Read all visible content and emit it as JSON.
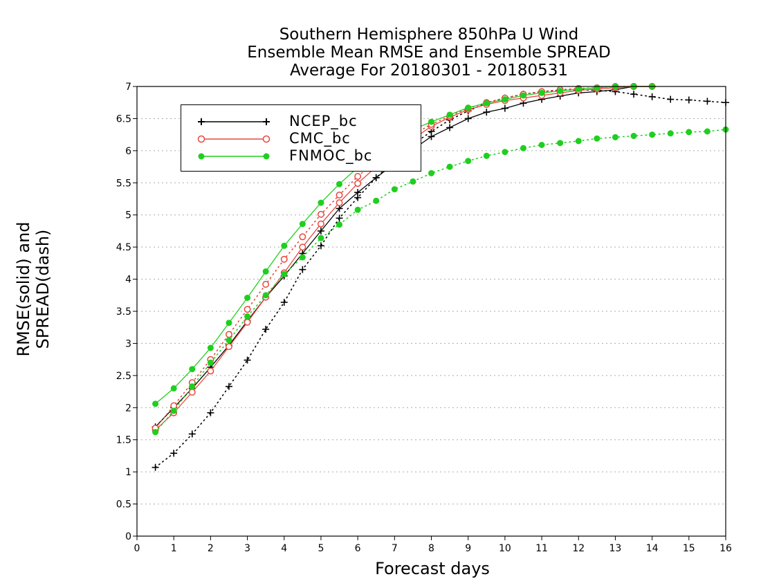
{
  "chart_data": {
    "type": "line",
    "title": [
      "Southern Hemisphere 850hPa U Wind",
      "Ensemble Mean RMSE and Ensemble SPREAD",
      "Average For 20180301 - 20180531"
    ],
    "xlabel": "Forecast days",
    "ylabel": "RMSE(solid) and SPREAD(dash)",
    "xlim": [
      0,
      16
    ],
    "ylim": [
      0,
      7
    ],
    "xticks": [
      "0",
      "1",
      "2",
      "3",
      "4",
      "5",
      "6",
      "7",
      "8",
      "9",
      "10",
      "11",
      "12",
      "13",
      "14",
      "15",
      "16"
    ],
    "yticks": [
      "0",
      "0.5",
      "1",
      "1.5",
      "2",
      "2.5",
      "3",
      "3.5",
      "4",
      "4.5",
      "5",
      "5.5",
      "6",
      "6.5",
      "7"
    ],
    "grid": true,
    "legend_position": "top-left",
    "series": [
      {
        "name": "NCEP_bc",
        "metric": "RMSE",
        "line": "solid",
        "marker": "plus",
        "color": "#000000",
        "x": [
          0.5,
          1,
          1.5,
          2,
          2.5,
          3,
          3.5,
          4,
          4.5,
          5,
          5.5,
          6,
          6.5,
          7,
          7.5,
          8,
          8.5,
          9,
          9.5,
          10,
          10.5,
          11,
          11.5,
          12,
          12.5,
          13,
          13.5,
          14
        ],
        "y": [
          1.7,
          2.0,
          2.3,
          2.63,
          2.97,
          3.35,
          3.72,
          4.05,
          4.4,
          4.75,
          5.1,
          5.35,
          5.58,
          5.8,
          6.02,
          6.22,
          6.36,
          6.5,
          6.6,
          6.66,
          6.74,
          6.8,
          6.85,
          6.9,
          6.92,
          6.95,
          7.0,
          7.0
        ]
      },
      {
        "name": "NCEP_bc",
        "metric": "SPREAD",
        "line": "dotted",
        "marker": "plus",
        "color": "#000000",
        "x": [
          0.5,
          1,
          1.5,
          2,
          2.5,
          3,
          3.5,
          4,
          4.5,
          5,
          5.5,
          6,
          6.5,
          7,
          7.5,
          8,
          8.5,
          9,
          9.5,
          10,
          10.5,
          11,
          11.5,
          12,
          12.5,
          13,
          13.5,
          14,
          14.5,
          15,
          15.5,
          16
        ],
        "y": [
          1.07,
          1.29,
          1.59,
          1.92,
          2.33,
          2.74,
          3.22,
          3.64,
          4.15,
          4.52,
          4.95,
          5.27,
          5.58,
          5.85,
          6.1,
          6.3,
          6.48,
          6.62,
          6.74,
          6.82,
          6.88,
          6.92,
          6.94,
          6.95,
          6.94,
          6.92,
          6.88,
          6.84,
          6.8,
          6.79,
          6.77,
          6.75
        ]
      },
      {
        "name": "CMC_bc",
        "metric": "RMSE",
        "line": "solid",
        "marker": "open-circle",
        "color": "#e8473c",
        "x": [
          0.5,
          1,
          1.5,
          2,
          2.5,
          3,
          3.5,
          4,
          4.5,
          5,
          5.5,
          6,
          6.5,
          7,
          7.5,
          8,
          8.5,
          9,
          9.5,
          10,
          10.5,
          11,
          11.5,
          12,
          12.5,
          13,
          13.5,
          14
        ],
        "y": [
          1.65,
          1.92,
          2.24,
          2.57,
          2.95,
          3.33,
          3.72,
          4.1,
          4.5,
          4.86,
          5.19,
          5.49,
          5.75,
          5.98,
          6.18,
          6.38,
          6.52,
          6.64,
          6.72,
          6.78,
          6.82,
          6.86,
          6.9,
          6.94,
          6.96,
          6.98,
          7.0,
          7.0
        ]
      },
      {
        "name": "CMC_bc",
        "metric": "SPREAD",
        "line": "dotted",
        "marker": "open-circle",
        "color": "#e8473c",
        "x": [
          0.5,
          1,
          1.5,
          2,
          2.5,
          3,
          3.5,
          4,
          4.5,
          5,
          5.5,
          6,
          6.5,
          7,
          7.5,
          8,
          8.5,
          9,
          9.5,
          10,
          10.5,
          11,
          11.5,
          12,
          12.5,
          13,
          13.5,
          14
        ],
        "y": [
          1.68,
          2.03,
          2.39,
          2.75,
          3.14,
          3.53,
          3.92,
          4.31,
          4.66,
          5.01,
          5.31,
          5.6,
          5.84,
          6.06,
          6.25,
          6.41,
          6.54,
          6.66,
          6.75,
          6.82,
          6.88,
          6.92,
          6.95,
          6.97,
          6.98,
          7.0,
          7.0,
          7.0
        ]
      },
      {
        "name": "FNMOC_bc",
        "metric": "RMSE",
        "line": "solid",
        "marker": "filled-circle",
        "color": "#1fcf1f",
        "x": [
          0.5,
          1,
          1.5,
          2,
          2.5,
          3,
          3.5,
          4,
          4.5,
          5,
          5.5,
          6,
          6.5,
          7,
          7.5,
          8,
          8.5,
          9,
          9.5,
          10,
          10.5,
          11,
          11.5,
          12,
          12.5,
          13,
          13.5,
          14
        ],
        "y": [
          2.06,
          2.3,
          2.6,
          2.93,
          3.32,
          3.71,
          4.12,
          4.52,
          4.86,
          5.19,
          5.48,
          5.74,
          5.97,
          6.17,
          6.33,
          6.45,
          6.56,
          6.67,
          6.74,
          6.8,
          6.86,
          6.9,
          6.93,
          6.96,
          6.98,
          7.0,
          7.0,
          7.0
        ]
      },
      {
        "name": "FNMOC_bc",
        "metric": "SPREAD",
        "line": "dotted",
        "marker": "filled-circle",
        "color": "#1fcf1f",
        "x": [
          0.5,
          1,
          1.5,
          2,
          2.5,
          3,
          3.5,
          4,
          4.5,
          5,
          5.5,
          6,
          6.5,
          7,
          7.5,
          8,
          8.5,
          9,
          9.5,
          10,
          10.5,
          11,
          11.5,
          12,
          12.5,
          13,
          13.5,
          14,
          14.5,
          15,
          15.5,
          16
        ],
        "y": [
          1.62,
          1.95,
          2.33,
          2.7,
          3.05,
          3.42,
          3.75,
          4.08,
          4.34,
          4.64,
          4.85,
          5.08,
          5.22,
          5.4,
          5.52,
          5.65,
          5.75,
          5.84,
          5.92,
          5.98,
          6.04,
          6.09,
          6.12,
          6.15,
          6.19,
          6.21,
          6.23,
          6.25,
          6.27,
          6.29,
          6.3,
          6.33
        ]
      }
    ]
  }
}
